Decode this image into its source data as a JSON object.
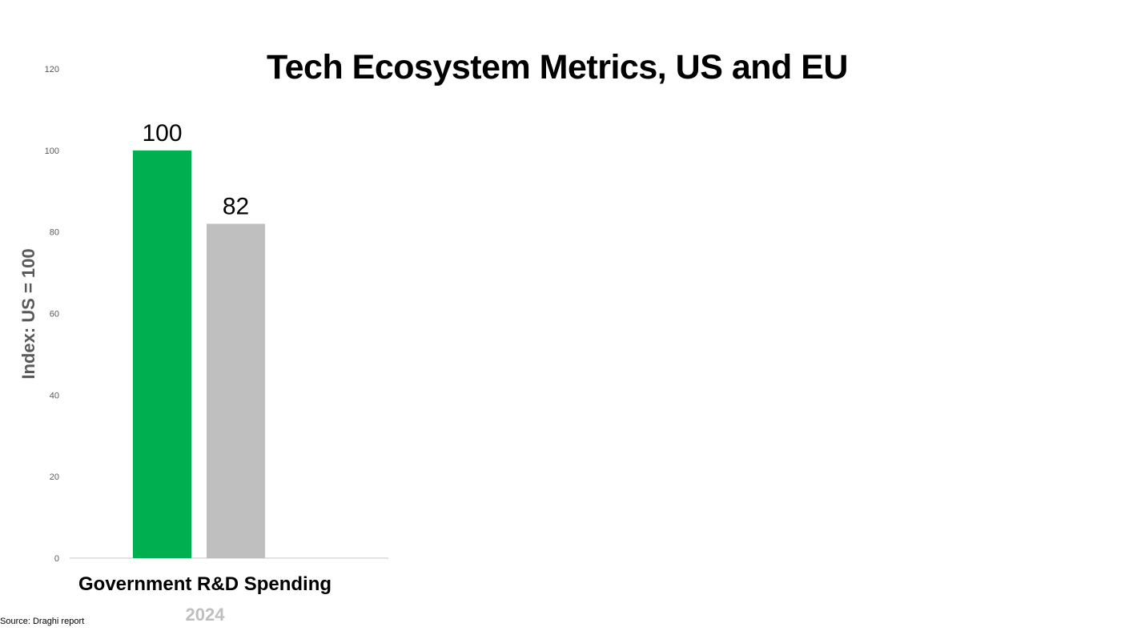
{
  "colors": {
    "us_bar": "#00b050",
    "eu_bar": "#bfbfbf",
    "axis_label": "#595959",
    "year_label": "#bfbfbf",
    "baseline": "#d9d9d9"
  },
  "source": "Source: Draghi report",
  "chart_data": {
    "type": "bar",
    "title": "Tech Ecosystem Metrics, US and EU",
    "ylabel": "Index: US = 100",
    "xlabel": "",
    "category_label": "Government R&D Spending",
    "period_label": "2024",
    "categories": [
      "Government R&D Spending"
    ],
    "series": [
      {
        "values": [
          100
        ],
        "color": "#00b050"
      },
      {
        "values": [
          82
        ],
        "color": "#bfbfbf"
      }
    ],
    "data_labels": [
      "100",
      "82"
    ],
    "ylim": [
      0,
      120
    ],
    "yticks": [
      0,
      20,
      40,
      60,
      80,
      100,
      120
    ],
    "grid": false,
    "legend": "none"
  }
}
